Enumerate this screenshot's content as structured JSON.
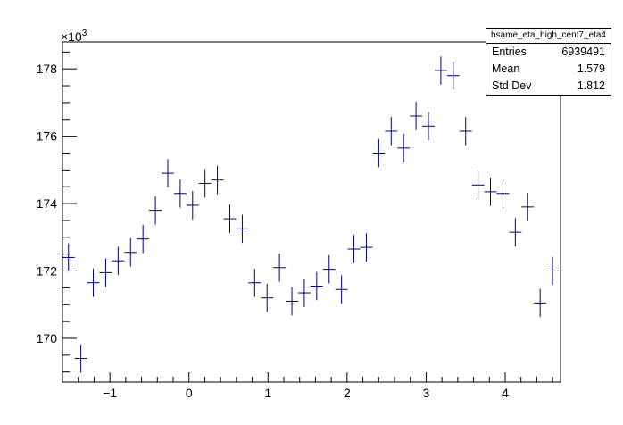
{
  "chart_data": {
    "type": "scatter",
    "title": "",
    "xlabel": "",
    "ylabel": "",
    "y_multiplier_label": "×10",
    "y_multiplier_exponent": "3",
    "xlim": [
      -1.6,
      4.7
    ],
    "ylim": [
      168.7,
      178.8
    ],
    "x_ticks": [
      -1,
      0,
      1,
      2,
      3,
      4
    ],
    "x_tick_labels": [
      "−1",
      "0",
      "1",
      "2",
      "3",
      "4"
    ],
    "y_ticks": [
      170,
      172,
      174,
      176,
      178
    ],
    "y_tick_labels": [
      "170",
      "172",
      "174",
      "176",
      "178"
    ],
    "x_bin_half_width": 0.0785,
    "y_error": 0.42,
    "x": [
      -1.524,
      -1.367,
      -1.21,
      -1.053,
      -0.896,
      -0.739,
      -0.582,
      -0.425,
      -0.268,
      -0.111,
      0.046,
      0.203,
      0.36,
      0.517,
      0.674,
      0.831,
      0.988,
      1.145,
      1.302,
      1.459,
      1.616,
      1.773,
      1.93,
      2.087,
      2.244,
      2.401,
      2.558,
      2.715,
      2.872,
      3.029,
      3.186,
      3.343,
      3.5,
      3.657,
      3.814,
      3.971,
      4.128,
      4.285,
      4.442,
      4.599
    ],
    "y": [
      172.4,
      169.4,
      171.65,
      171.95,
      172.3,
      172.55,
      172.95,
      173.8,
      174.9,
      174.3,
      173.95,
      174.6,
      174.7,
      173.55,
      173.25,
      171.65,
      171.2,
      172.1,
      171.1,
      171.35,
      171.55,
      172.05,
      171.45,
      172.65,
      172.7,
      175.5,
      176.15,
      175.65,
      176.6,
      176.3,
      177.95,
      177.8,
      176.15,
      174.55,
      174.35,
      174.3,
      173.15,
      173.9,
      171.05,
      172.0
    ],
    "series_color": "#000080",
    "grid": false,
    "legend": "none"
  },
  "stats": {
    "name": "hsame_eta_high_cent7_eta4",
    "rows": [
      {
        "label": "Entries",
        "value": "6939491"
      },
      {
        "label": "Mean",
        "value": "1.579"
      },
      {
        "label": "Std Dev",
        "value": "1.812"
      }
    ]
  }
}
